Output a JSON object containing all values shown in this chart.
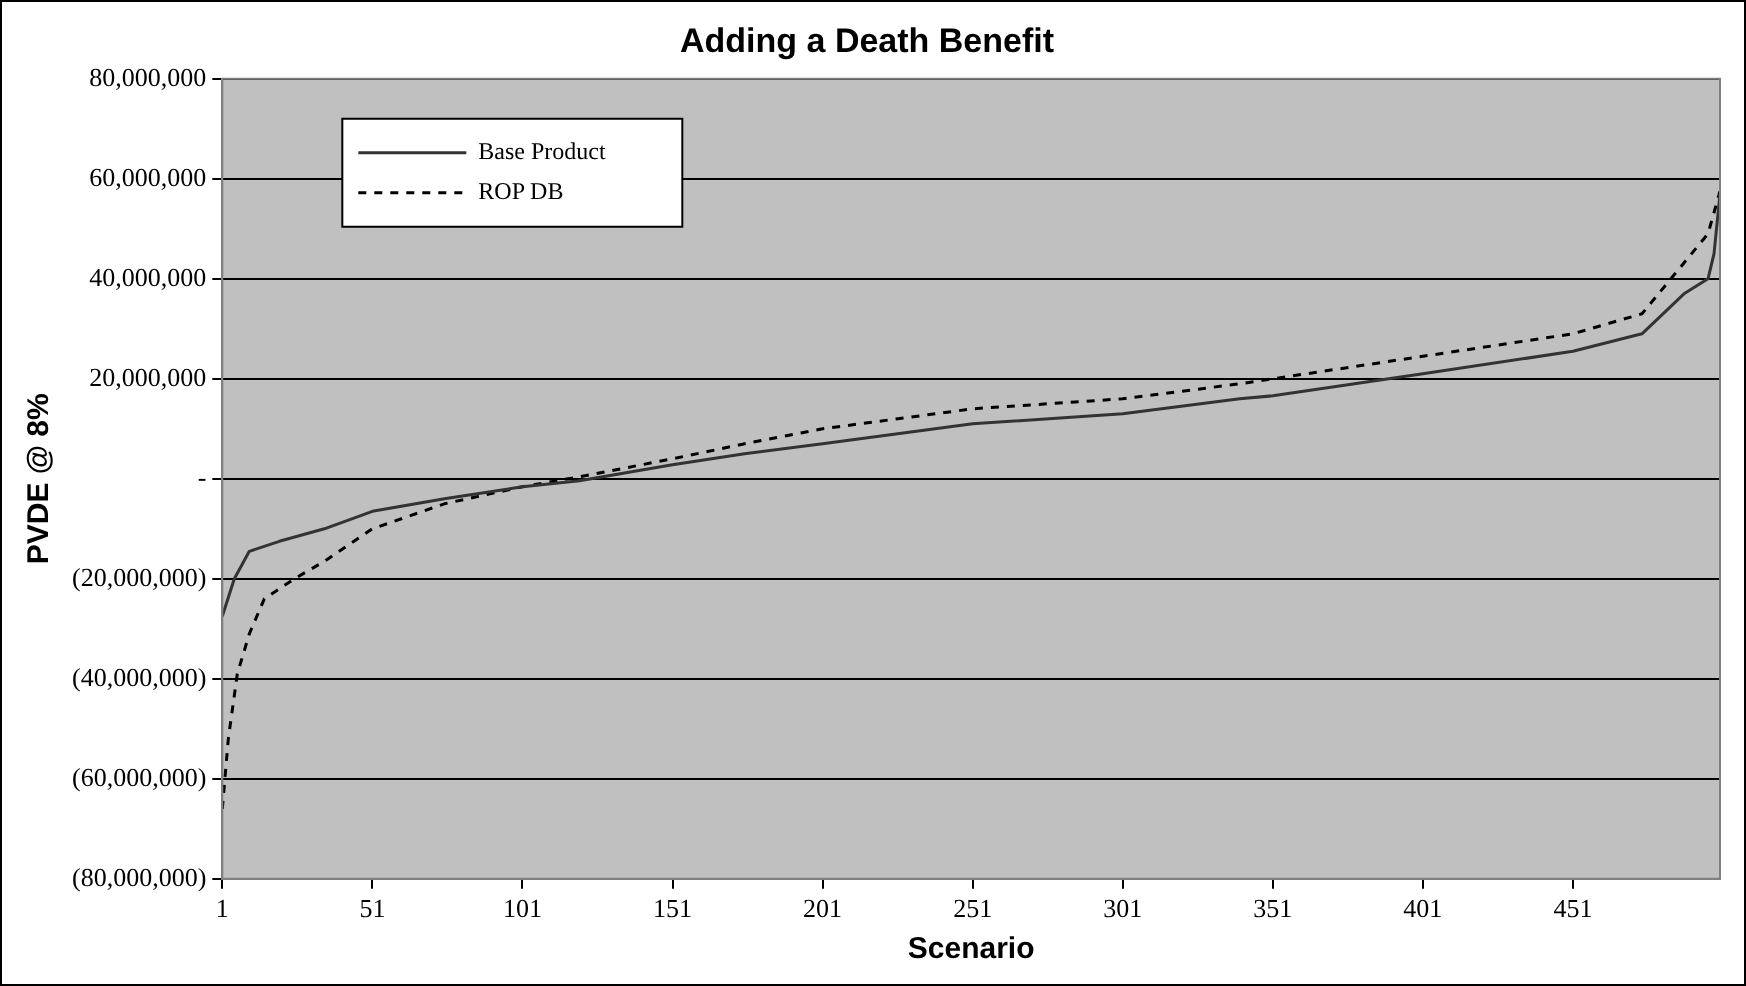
{
  "chart_data": {
    "type": "line",
    "title": "Adding a Death Benefit",
    "xlabel": "Scenario",
    "ylabel": "PVDE @ 8%",
    "xlim": [
      1,
      500
    ],
    "xticks": [
      1,
      51,
      101,
      151,
      201,
      251,
      301,
      351,
      401,
      451
    ],
    "ylim": [
      -80000000,
      80000000
    ],
    "yticks": [
      {
        "value": -80000000,
        "label": "(80,000,000)"
      },
      {
        "value": -60000000,
        "label": "(60,000,000)"
      },
      {
        "value": -40000000,
        "label": "(40,000,000)"
      },
      {
        "value": -20000000,
        "label": "(20,000,000)"
      },
      {
        "value": 0,
        "label": "-"
      },
      {
        "value": 20000000,
        "label": "20,000,000"
      },
      {
        "value": 40000000,
        "label": "40,000,000"
      },
      {
        "value": 60000000,
        "label": "60,000,000"
      },
      {
        "value": 80000000,
        "label": "80,000,000"
      }
    ],
    "grid": "y",
    "legend": "top left",
    "marker": "none",
    "series": [
      {
        "name": "Base Product",
        "color": "#333333",
        "line_style": "solid",
        "x": [
          1,
          5,
          10,
          20,
          35,
          51,
          75,
          101,
          120,
          151,
          175,
          201,
          251,
          301,
          340,
          351,
          401,
          451,
          474,
          488,
          496,
          498,
          500
        ],
        "values": [
          -27500000,
          -20000000,
          -14500000,
          -12500000,
          -10000000,
          -6500000,
          -4000000,
          -1600000,
          -400000,
          2800000,
          5000000,
          7000000,
          11000000,
          13000000,
          16000000,
          16600000,
          21000000,
          25500000,
          29000000,
          37000000,
          40000000,
          45000000,
          57000000
        ]
      },
      {
        "name": "ROP DB",
        "color": "#000000",
        "line_style": "dashed",
        "x": [
          1,
          3,
          6,
          10,
          15,
          25,
          35,
          51,
          75,
          101,
          120,
          151,
          175,
          201,
          251,
          301,
          340,
          351,
          401,
          451,
          474,
          485,
          496,
          500
        ],
        "values": [
          -66000000,
          -52000000,
          -39000000,
          -31000000,
          -24000000,
          -20000000,
          -16500000,
          -10000000,
          -5000000,
          -1600000,
          400000,
          4000000,
          7000000,
          10000000,
          14000000,
          16000000,
          19000000,
          20000000,
          24500000,
          29000000,
          33000000,
          41000000,
          49000000,
          57500000
        ]
      }
    ]
  }
}
